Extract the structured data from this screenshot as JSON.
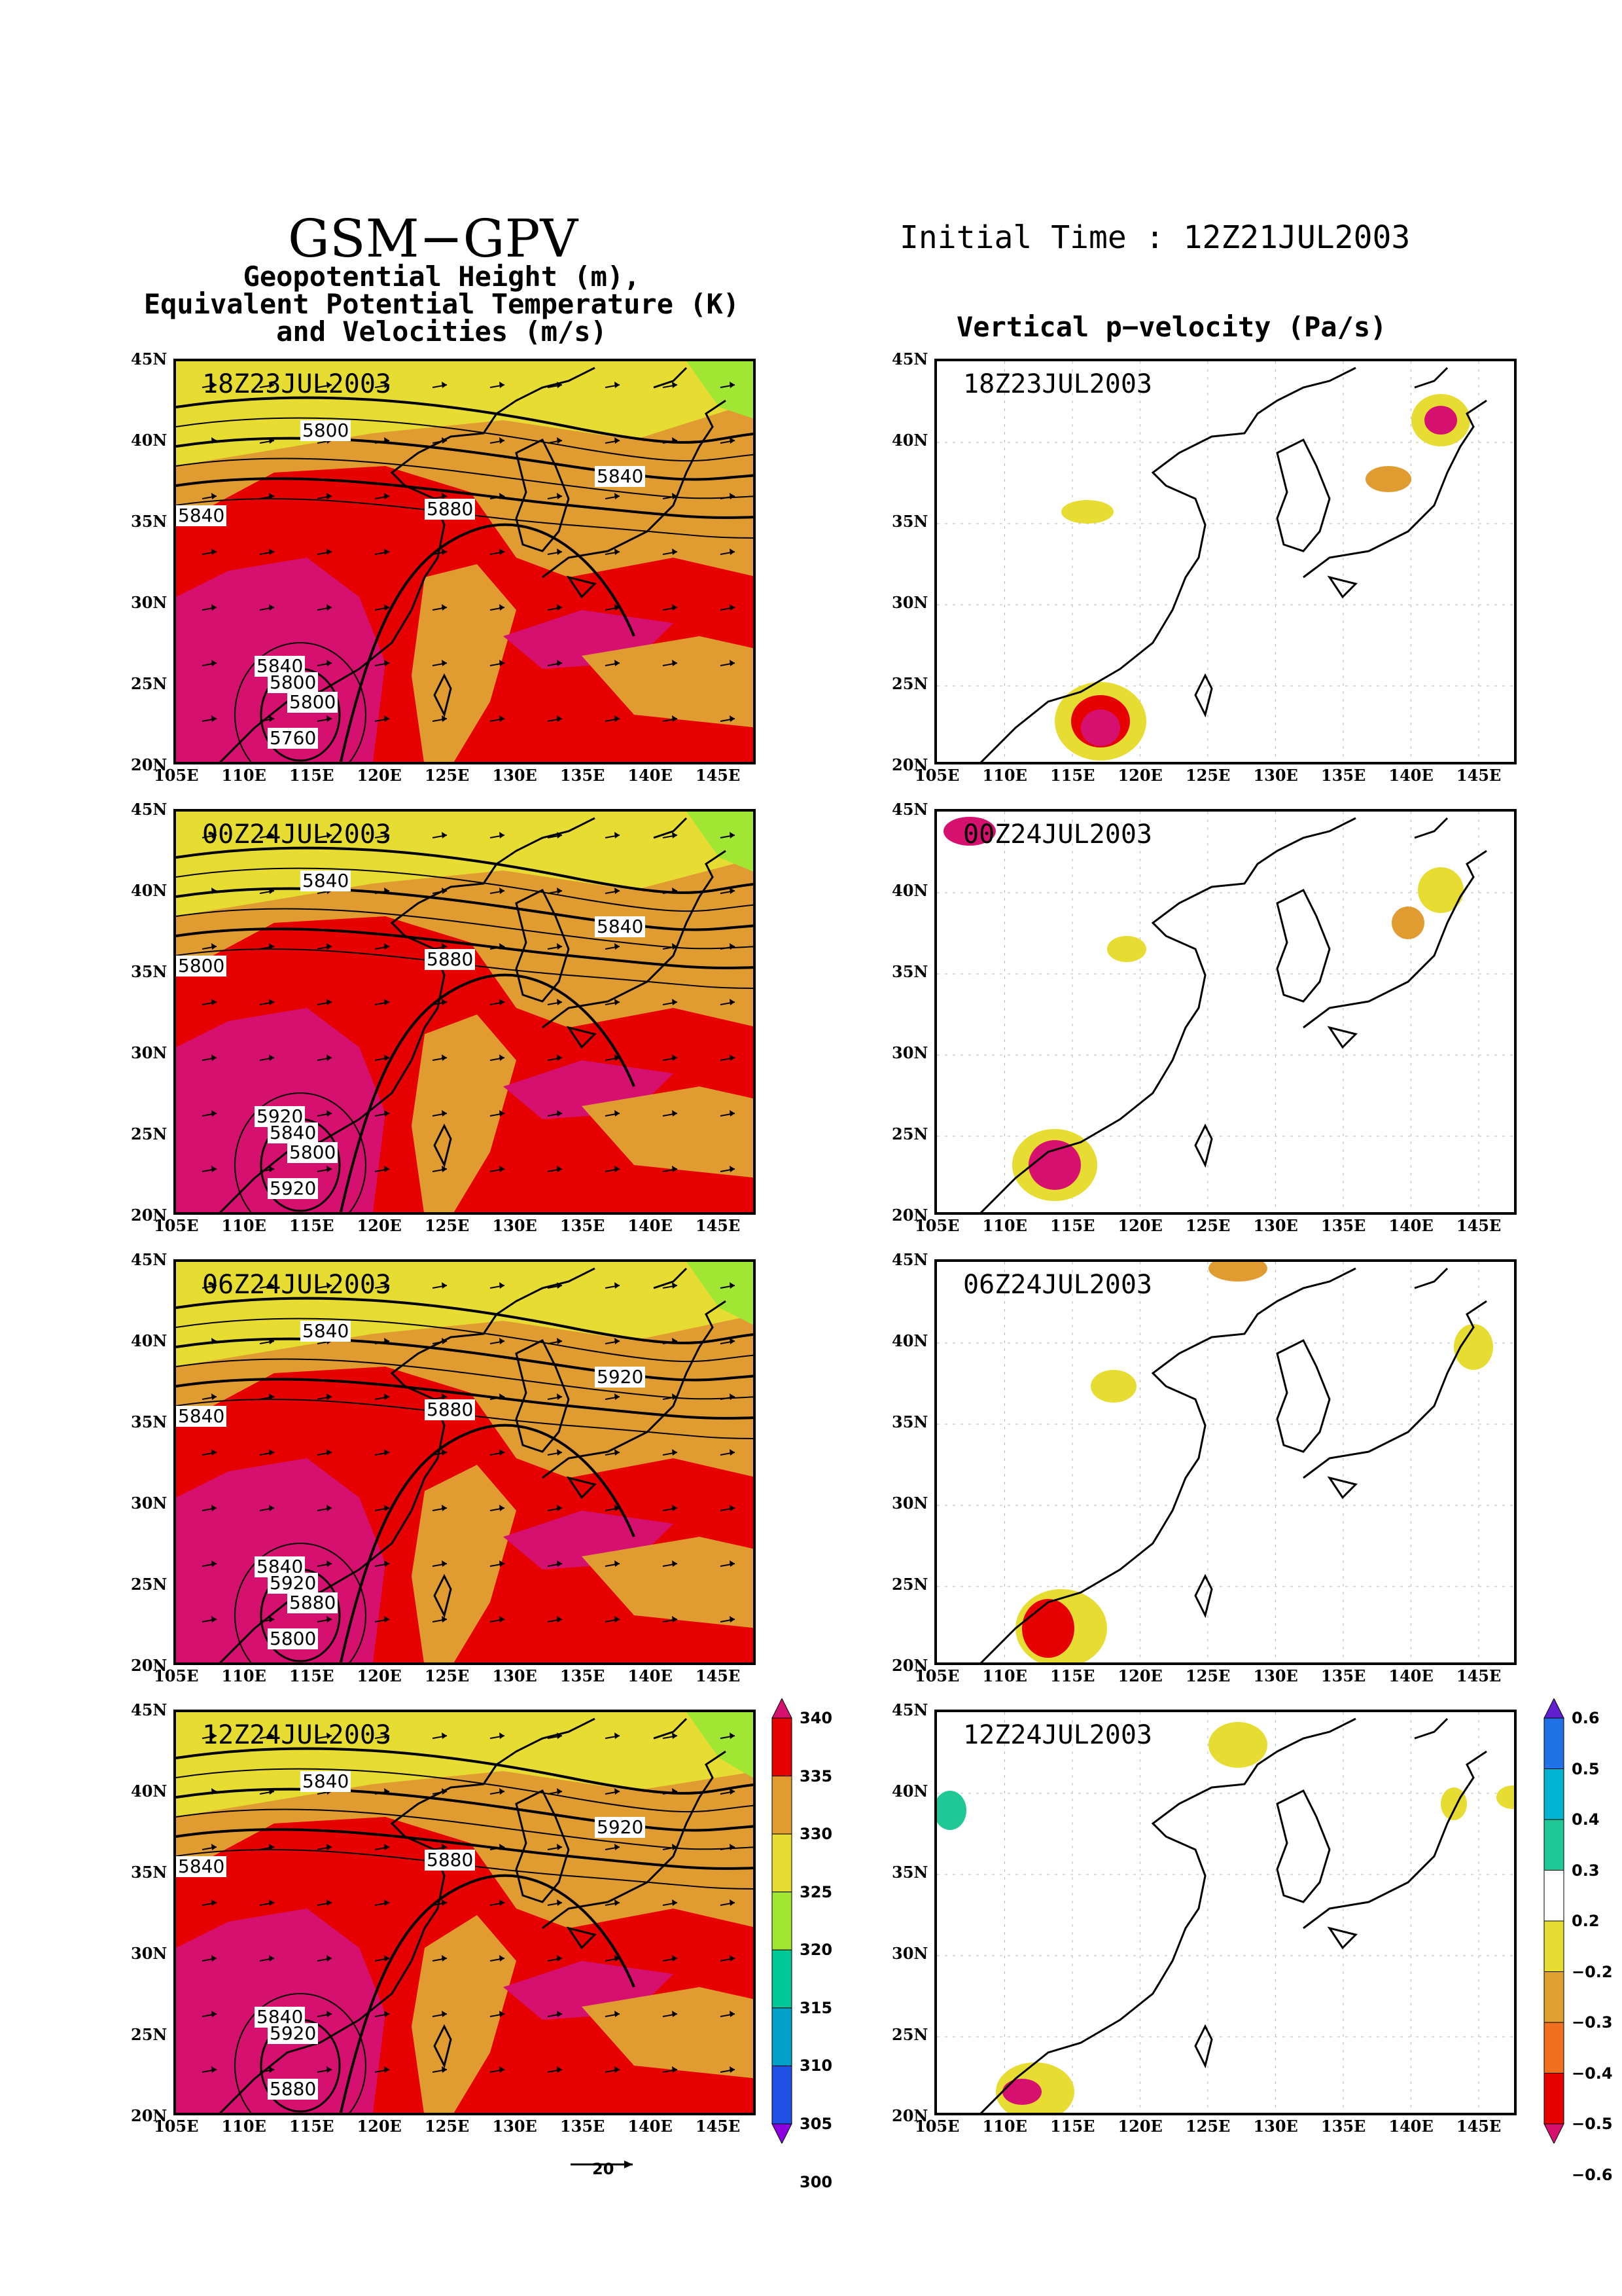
{
  "header": {
    "title": "GSM−GPV",
    "subtitle_lines": [
      "Geopotential Height (m),",
      "Equivalent Potential Temperature (K)",
      "and Velocities (m/s)"
    ],
    "initial_time": "Initial Time : 12Z21JUL2003",
    "right_title": "Vertical p−velocity (Pa/s)"
  },
  "axes": {
    "lat_labels": [
      "45N",
      "40N",
      "35N",
      "30N",
      "25N",
      "20N"
    ],
    "lon_labels": [
      "105E",
      "110E",
      "115E",
      "120E",
      "125E",
      "130E",
      "135E",
      "140E",
      "145E"
    ]
  },
  "panels": [
    {
      "time": "18Z23JUL2003",
      "contour_labels": [
        "5800",
        "5840",
        "5880",
        "5840",
        "5840",
        "5800",
        "5760",
        "5800"
      ]
    },
    {
      "time": "00Z24JUL2003",
      "contour_labels": [
        "5840",
        "5800",
        "5880",
        "5840",
        "5920",
        "5840",
        "5920",
        "5800"
      ]
    },
    {
      "time": "06Z24JUL2003",
      "contour_labels": [
        "5840",
        "5840",
        "5880",
        "5920",
        "5840",
        "5920",
        "5800",
        "5880"
      ]
    },
    {
      "time": "12Z24JUL2003",
      "contour_labels": [
        "5840",
        "5840",
        "5880",
        "5920",
        "5840",
        "5920",
        "5880"
      ]
    }
  ],
  "theta_e_colorbar": {
    "labels": [
      "340",
      "335",
      "330",
      "325",
      "320",
      "315",
      "310",
      "305",
      "300"
    ],
    "colors": [
      "#d6106e",
      "#e60000",
      "#e09c30",
      "#e6dc32",
      "#a0e632",
      "#00c896",
      "#00a0c8",
      "#2050e6",
      "#8c00e0"
    ]
  },
  "omega_colorbar": {
    "labels": [
      "0.6",
      "0.5",
      "0.4",
      "0.3",
      "0.2",
      "−0.2",
      "−0.3",
      "−0.4",
      "−0.5",
      "−0.6"
    ],
    "colors": [
      "#6020d0",
      "#2070e6",
      "#00b4d2",
      "#20c896",
      "#ffffff",
      "#e6dc32",
      "#e0a030",
      "#f07020",
      "#e60000",
      "#d6106e"
    ]
  },
  "reference_vector": "20"
}
